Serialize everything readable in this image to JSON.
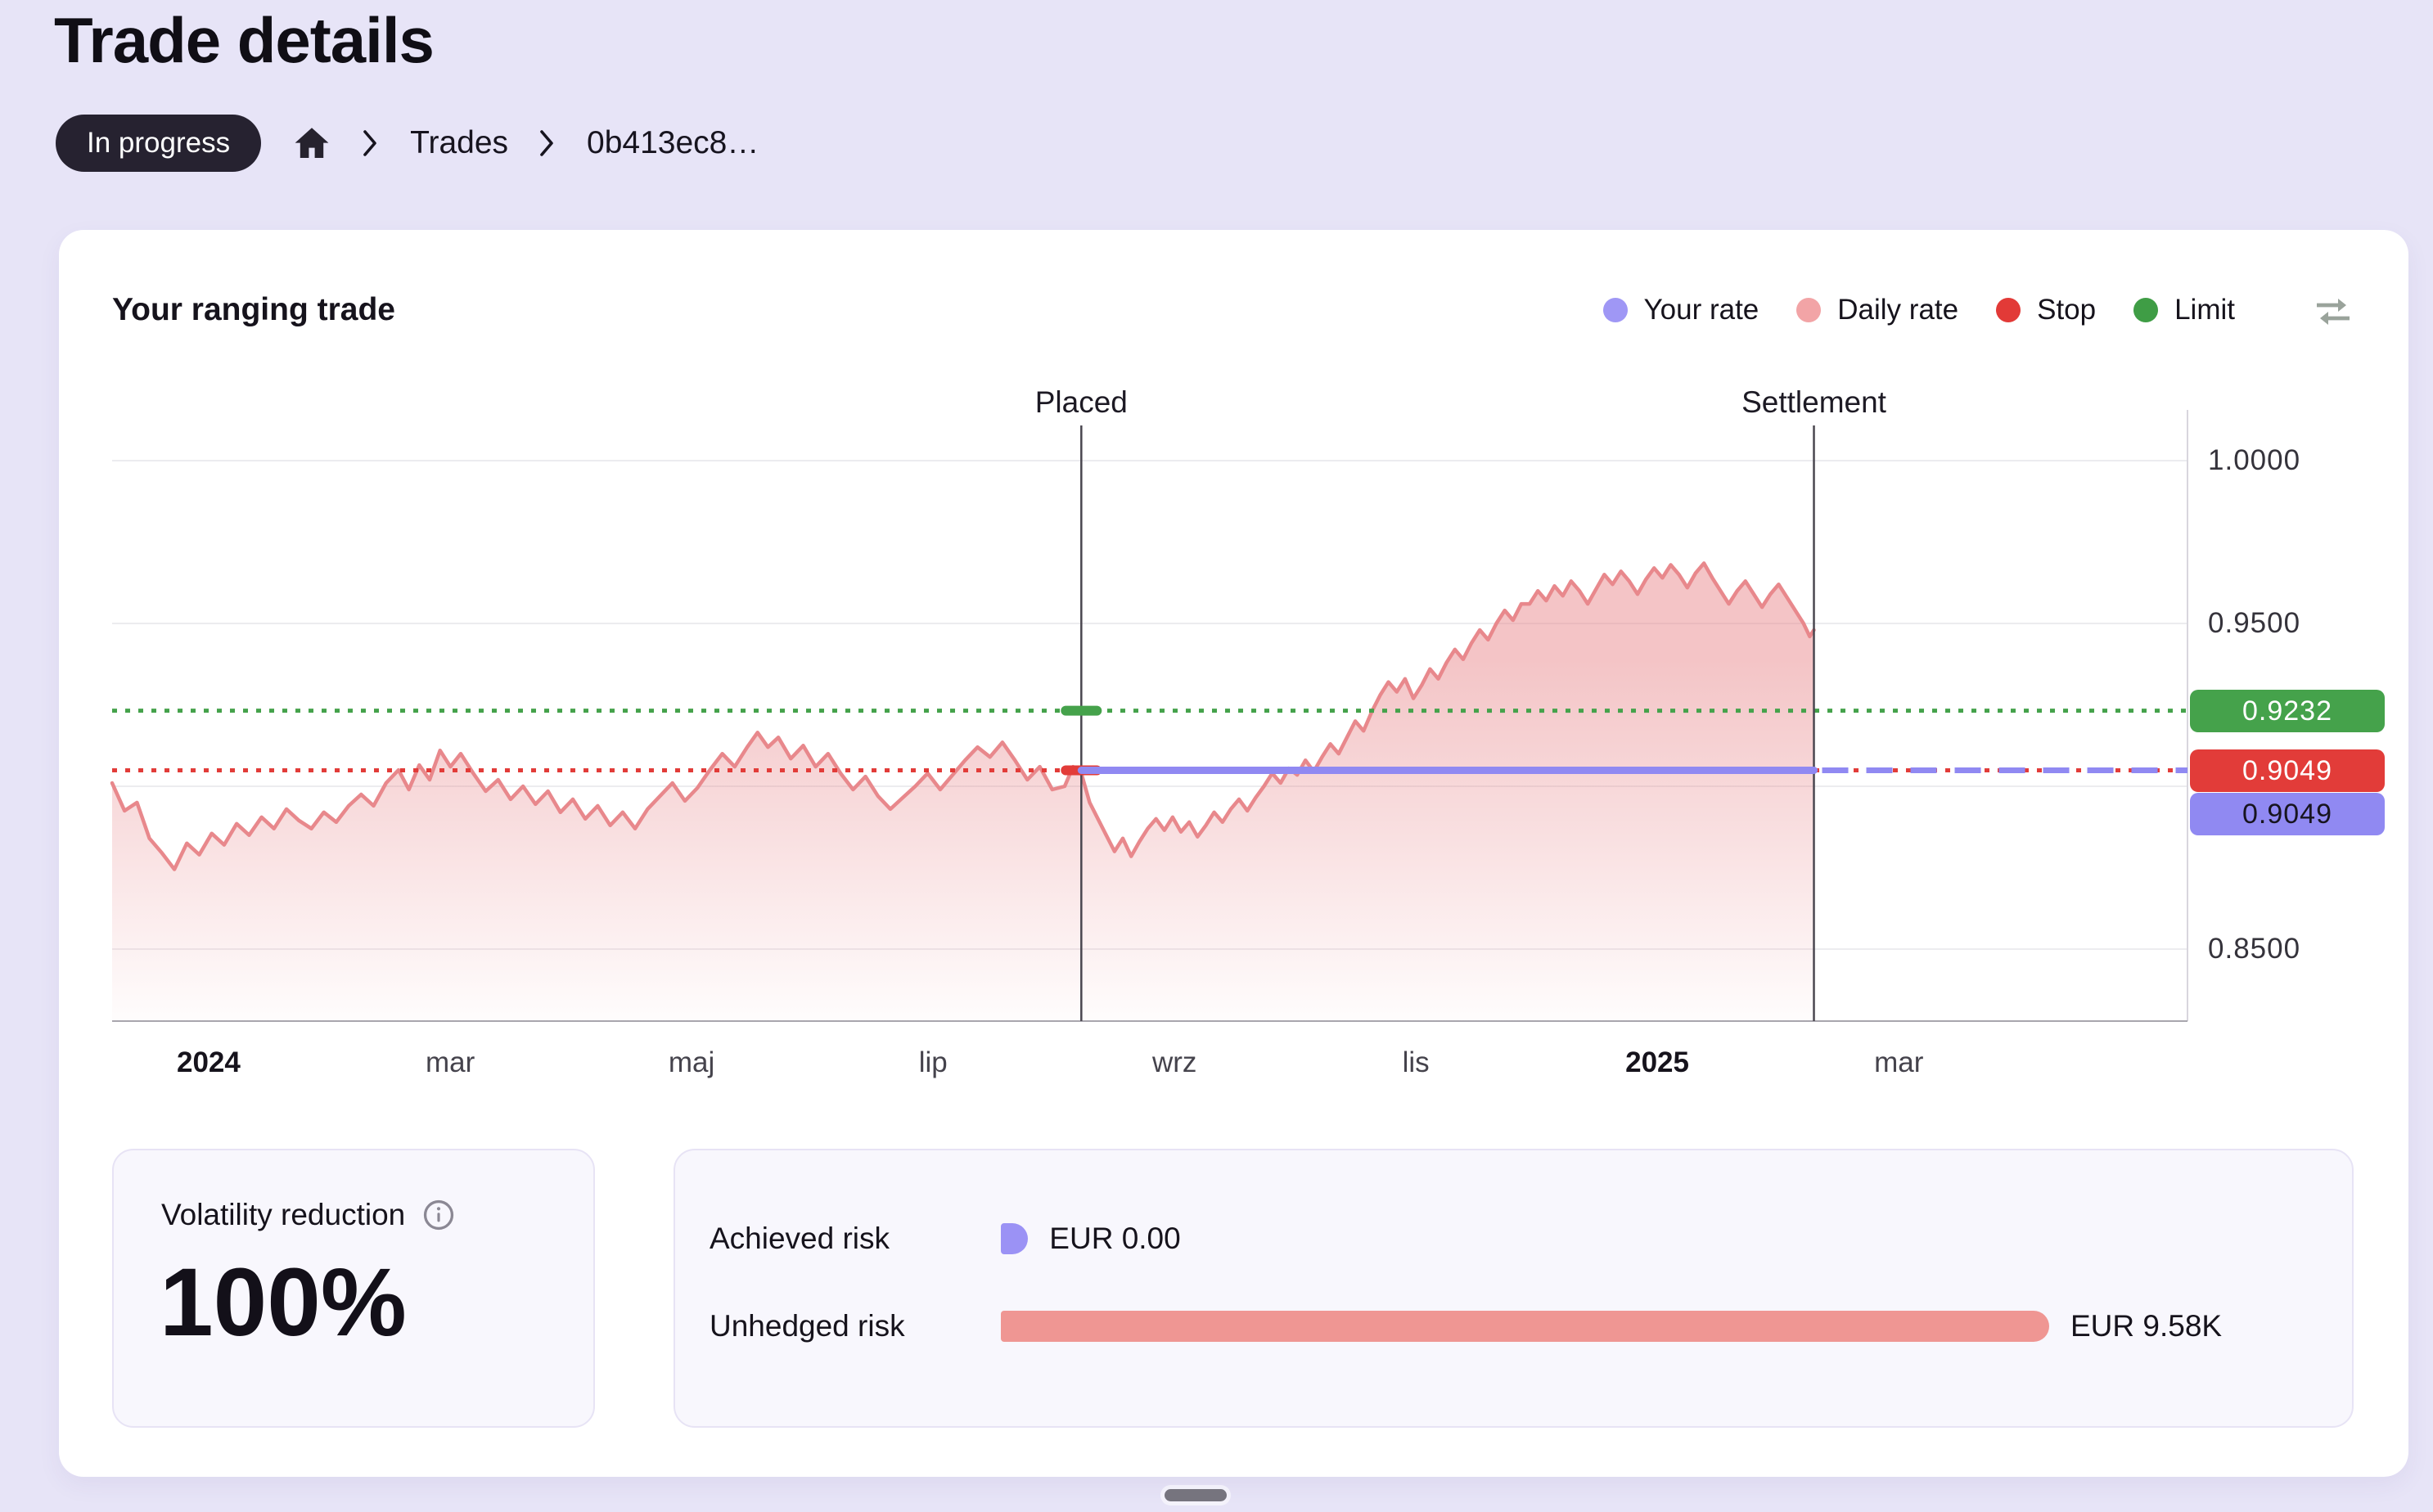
{
  "page": {
    "title": "Trade details",
    "status_badge": "In progress",
    "status_badge_color": "#262230",
    "breadcrumb": {
      "items": [
        "Trades",
        "0b413ec8…"
      ]
    },
    "background_color": "#e7e4f7"
  },
  "chart_card": {
    "title": "Your ranging trade"
  },
  "chart_data": {
    "type": "area",
    "title": "Your ranging trade",
    "legend": [
      {
        "label": "Your rate",
        "color": "#9f97f5"
      },
      {
        "label": "Daily rate",
        "color": "#f2a4a6"
      },
      {
        "label": "Stop",
        "color": "#e23a37"
      },
      {
        "label": "Limit",
        "color": "#3f9d45"
      }
    ],
    "x_ticks": [
      {
        "label": "2024",
        "f": 0.0465,
        "bold": true
      },
      {
        "label": "mar",
        "f": 0.1629,
        "bold": false
      },
      {
        "label": "maj",
        "f": 0.2792,
        "bold": false
      },
      {
        "label": "lip",
        "f": 0.3956,
        "bold": false
      },
      {
        "label": "wrz",
        "f": 0.5119,
        "bold": false
      },
      {
        "label": "lis",
        "f": 0.6282,
        "bold": false
      },
      {
        "label": "2025",
        "f": 0.7445,
        "bold": true
      },
      {
        "label": "mar",
        "f": 0.8609,
        "bold": false
      }
    ],
    "y_ticks": [
      {
        "label": "1.0000",
        "value": 1.0
      },
      {
        "label": "0.9500",
        "value": 0.95
      },
      {
        "label": "0.8500",
        "value": 0.85
      }
    ],
    "grid_values": [
      1.0,
      0.95,
      0.9,
      0.85
    ],
    "ylim": [
      0.822,
      1.011
    ],
    "markers": {
      "limit": {
        "label": "0.9232",
        "value": 0.9232,
        "color": "#45a24b",
        "style": "dotted"
      },
      "stop": {
        "label": "0.9049",
        "value": 0.9049,
        "color": "#e23c39",
        "style": "dotted"
      },
      "your_rate": {
        "label": "0.9049",
        "value": 0.9049,
        "color": "#9089f2",
        "style": "solid-then-dashed"
      }
    },
    "events": [
      {
        "label": "Placed",
        "f": 0.467
      },
      {
        "label": "Settlement",
        "f": 0.82
      }
    ],
    "series": [
      {
        "name": "Daily rate",
        "color": "#e8888c",
        "points": [
          [
            0.0,
            0.901
          ],
          [
            0.006,
            0.8925
          ],
          [
            0.012,
            0.895
          ],
          [
            0.018,
            0.884
          ],
          [
            0.024,
            0.8795
          ],
          [
            0.03,
            0.8745
          ],
          [
            0.036,
            0.8825
          ],
          [
            0.042,
            0.879
          ],
          [
            0.048,
            0.8855
          ],
          [
            0.054,
            0.882
          ],
          [
            0.06,
            0.8885
          ],
          [
            0.066,
            0.885
          ],
          [
            0.072,
            0.8905
          ],
          [
            0.078,
            0.887
          ],
          [
            0.084,
            0.893
          ],
          [
            0.09,
            0.8895
          ],
          [
            0.096,
            0.887
          ],
          [
            0.102,
            0.892
          ],
          [
            0.108,
            0.889
          ],
          [
            0.114,
            0.894
          ],
          [
            0.12,
            0.8975
          ],
          [
            0.126,
            0.894
          ],
          [
            0.132,
            0.901
          ],
          [
            0.138,
            0.905
          ],
          [
            0.143,
            0.899
          ],
          [
            0.148,
            0.9065
          ],
          [
            0.153,
            0.902
          ],
          [
            0.158,
            0.911
          ],
          [
            0.163,
            0.906
          ],
          [
            0.168,
            0.91
          ],
          [
            0.174,
            0.904
          ],
          [
            0.18,
            0.8985
          ],
          [
            0.186,
            0.902
          ],
          [
            0.192,
            0.896
          ],
          [
            0.198,
            0.9
          ],
          [
            0.204,
            0.8945
          ],
          [
            0.21,
            0.8985
          ],
          [
            0.216,
            0.892
          ],
          [
            0.222,
            0.896
          ],
          [
            0.228,
            0.89
          ],
          [
            0.234,
            0.894
          ],
          [
            0.24,
            0.888
          ],
          [
            0.246,
            0.892
          ],
          [
            0.252,
            0.887
          ],
          [
            0.258,
            0.893
          ],
          [
            0.264,
            0.897
          ],
          [
            0.27,
            0.901
          ],
          [
            0.276,
            0.8955
          ],
          [
            0.282,
            0.8995
          ],
          [
            0.288,
            0.905
          ],
          [
            0.294,
            0.91
          ],
          [
            0.3,
            0.906
          ],
          [
            0.306,
            0.912
          ],
          [
            0.311,
            0.9165
          ],
          [
            0.316,
            0.912
          ],
          [
            0.321,
            0.915
          ],
          [
            0.327,
            0.9085
          ],
          [
            0.333,
            0.9125
          ],
          [
            0.339,
            0.906
          ],
          [
            0.345,
            0.91
          ],
          [
            0.351,
            0.904
          ],
          [
            0.357,
            0.899
          ],
          [
            0.363,
            0.903
          ],
          [
            0.369,
            0.897
          ],
          [
            0.375,
            0.893
          ],
          [
            0.381,
            0.8965
          ],
          [
            0.387,
            0.9
          ],
          [
            0.393,
            0.904
          ],
          [
            0.399,
            0.899
          ],
          [
            0.405,
            0.9035
          ],
          [
            0.411,
            0.908
          ],
          [
            0.417,
            0.912
          ],
          [
            0.423,
            0.909
          ],
          [
            0.429,
            0.9135
          ],
          [
            0.435,
            0.908
          ],
          [
            0.441,
            0.902
          ],
          [
            0.447,
            0.906
          ],
          [
            0.453,
            0.899
          ],
          [
            0.459,
            0.9
          ],
          [
            0.463,
            0.906
          ],
          [
            0.467,
            0.904
          ],
          [
            0.471,
            0.895
          ],
          [
            0.475,
            0.89
          ],
          [
            0.479,
            0.885
          ],
          [
            0.483,
            0.88
          ],
          [
            0.487,
            0.884
          ],
          [
            0.491,
            0.8785
          ],
          [
            0.495,
            0.883
          ],
          [
            0.499,
            0.887
          ],
          [
            0.503,
            0.89
          ],
          [
            0.507,
            0.8865
          ],
          [
            0.511,
            0.8905
          ],
          [
            0.515,
            0.886
          ],
          [
            0.519,
            0.889
          ],
          [
            0.523,
            0.8845
          ],
          [
            0.527,
            0.888
          ],
          [
            0.531,
            0.892
          ],
          [
            0.535,
            0.889
          ],
          [
            0.539,
            0.893
          ],
          [
            0.543,
            0.896
          ],
          [
            0.547,
            0.8925
          ],
          [
            0.551,
            0.8965
          ],
          [
            0.555,
            0.9
          ],
          [
            0.559,
            0.904
          ],
          [
            0.563,
            0.901
          ],
          [
            0.567,
            0.9055
          ],
          [
            0.571,
            0.9035
          ],
          [
            0.575,
            0.908
          ],
          [
            0.579,
            0.9045
          ],
          [
            0.583,
            0.909
          ],
          [
            0.587,
            0.913
          ],
          [
            0.591,
            0.91
          ],
          [
            0.595,
            0.915
          ],
          [
            0.599,
            0.92
          ],
          [
            0.603,
            0.917
          ],
          [
            0.607,
            0.923
          ],
          [
            0.611,
            0.928
          ],
          [
            0.615,
            0.932
          ],
          [
            0.619,
            0.929
          ],
          [
            0.623,
            0.933
          ],
          [
            0.627,
            0.927
          ],
          [
            0.631,
            0.931
          ],
          [
            0.635,
            0.936
          ],
          [
            0.639,
            0.933
          ],
          [
            0.643,
            0.938
          ],
          [
            0.647,
            0.942
          ],
          [
            0.651,
            0.939
          ],
          [
            0.655,
            0.944
          ],
          [
            0.659,
            0.948
          ],
          [
            0.663,
            0.945
          ],
          [
            0.667,
            0.95
          ],
          [
            0.671,
            0.954
          ],
          [
            0.675,
            0.951
          ],
          [
            0.679,
            0.956
          ],
          [
            0.683,
            0.956
          ],
          [
            0.687,
            0.96
          ],
          [
            0.691,
            0.957
          ],
          [
            0.695,
            0.9615
          ],
          [
            0.699,
            0.9585
          ],
          [
            0.703,
            0.963
          ],
          [
            0.707,
            0.96
          ],
          [
            0.711,
            0.956
          ],
          [
            0.715,
            0.9605
          ],
          [
            0.719,
            0.965
          ],
          [
            0.723,
            0.962
          ],
          [
            0.727,
            0.966
          ],
          [
            0.731,
            0.963
          ],
          [
            0.735,
            0.959
          ],
          [
            0.739,
            0.9635
          ],
          [
            0.743,
            0.967
          ],
          [
            0.747,
            0.964
          ],
          [
            0.751,
            0.968
          ],
          [
            0.755,
            0.965
          ],
          [
            0.759,
            0.961
          ],
          [
            0.763,
            0.9655
          ],
          [
            0.767,
            0.9685
          ],
          [
            0.771,
            0.964
          ],
          [
            0.775,
            0.96
          ],
          [
            0.779,
            0.956
          ],
          [
            0.783,
            0.96
          ],
          [
            0.787,
            0.963
          ],
          [
            0.791,
            0.959
          ],
          [
            0.795,
            0.955
          ],
          [
            0.799,
            0.959
          ],
          [
            0.803,
            0.962
          ],
          [
            0.807,
            0.958
          ],
          [
            0.811,
            0.954
          ],
          [
            0.815,
            0.95
          ],
          [
            0.818,
            0.946
          ],
          [
            0.82,
            0.948
          ]
        ]
      }
    ]
  },
  "volatility": {
    "label": "Volatility reduction",
    "value": "100%"
  },
  "risk": {
    "rows": [
      {
        "label": "Achieved risk",
        "value": "EUR 0.00",
        "color": "#9b92f5",
        "bar_pct": 2.6
      },
      {
        "label": "Unhedged risk",
        "value": "EUR 9.58K",
        "color": "#ef9693",
        "bar_pct": 100
      }
    ]
  }
}
